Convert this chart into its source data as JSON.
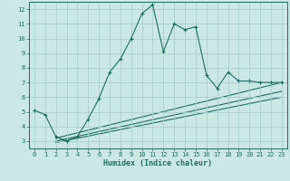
{
  "xlabel": "Humidex (Indice chaleur)",
  "xlim": [
    -0.5,
    23.5
  ],
  "ylim": [
    2.5,
    12.5
  ],
  "yticks": [
    3,
    4,
    5,
    6,
    7,
    8,
    9,
    10,
    11,
    12
  ],
  "xticks": [
    0,
    1,
    2,
    3,
    4,
    5,
    6,
    7,
    8,
    9,
    10,
    11,
    12,
    13,
    14,
    15,
    16,
    17,
    18,
    19,
    20,
    21,
    22,
    23
  ],
  "bg_color": "#cce8e4",
  "line_color": "#1a6e62",
  "grid_color": "#aaced0",
  "line1_x": [
    0,
    1,
    2,
    3,
    4,
    5,
    6,
    7,
    8,
    9,
    10,
    11,
    12,
    13,
    14,
    15,
    16,
    17,
    18,
    19,
    20,
    21,
    22,
    23
  ],
  "line1_y": [
    5.1,
    4.8,
    3.3,
    3.0,
    3.3,
    4.5,
    5.9,
    7.7,
    8.6,
    10.0,
    11.7,
    12.3,
    9.1,
    11.0,
    10.6,
    10.8,
    7.5,
    6.6,
    7.7,
    7.1,
    7.1,
    7.0,
    7.0,
    7.0
  ],
  "line2_x": [
    2,
    23
  ],
  "line2_y": [
    3.2,
    7.0
  ],
  "line3_x": [
    2,
    23
  ],
  "line3_y": [
    3.0,
    6.4
  ],
  "line4_x": [
    2,
    23
  ],
  "line4_y": [
    2.9,
    6.0
  ],
  "marker": "+"
}
